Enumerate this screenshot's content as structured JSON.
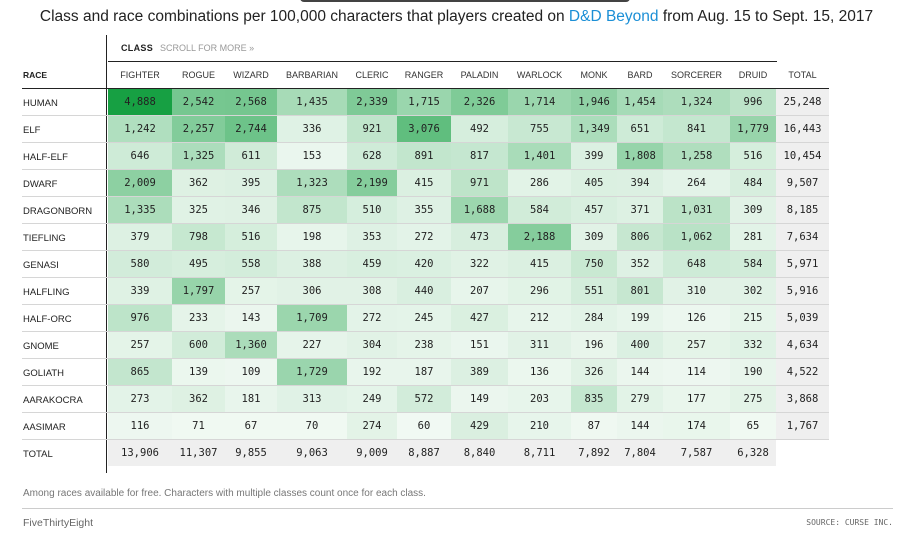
{
  "subtitle": {
    "before": "Class and race combinations per 100,000 characters that players created on ",
    "link": "D&D Beyond",
    "after": " from Aug. 15 to Sept. 15, 2017"
  },
  "chart_data": {
    "type": "heatmap",
    "class_label": "CLASS",
    "scroll_hint": "SCROLL FOR MORE »",
    "race_label": "RACE",
    "columns": [
      "FIGHTER",
      "ROGUE",
      "WIZARD",
      "BARBARIAN",
      "CLERIC",
      "RANGER",
      "PALADIN",
      "WARLOCK",
      "MONK",
      "BARD",
      "SORCERER",
      "DRUID"
    ],
    "total_label": "TOTAL",
    "rows": [
      {
        "race": "HUMAN",
        "values": [
          "4,888",
          "2,542",
          "2,568",
          "1,435",
          "2,339",
          "1,715",
          "2,326",
          "1,714",
          "1,946",
          "1,454",
          "1,324",
          "996"
        ],
        "total": "25,248"
      },
      {
        "race": "ELF",
        "values": [
          "1,242",
          "2,257",
          "2,744",
          "336",
          "921",
          "3,076",
          "492",
          "755",
          "1,349",
          "651",
          "841",
          "1,779"
        ],
        "total": "16,443"
      },
      {
        "race": "HALF-ELF",
        "values": [
          "646",
          "1,325",
          "611",
          "153",
          "628",
          "891",
          "817",
          "1,401",
          "399",
          "1,808",
          "1,258",
          "516"
        ],
        "total": "10,454"
      },
      {
        "race": "DWARF",
        "values": [
          "2,009",
          "362",
          "395",
          "1,323",
          "2,199",
          "415",
          "971",
          "286",
          "405",
          "394",
          "264",
          "484"
        ],
        "total": "9,507"
      },
      {
        "race": "DRAGONBORN",
        "values": [
          "1,335",
          "325",
          "346",
          "875",
          "510",
          "355",
          "1,688",
          "584",
          "457",
          "371",
          "1,031",
          "309"
        ],
        "total": "8,185"
      },
      {
        "race": "TIEFLING",
        "values": [
          "379",
          "798",
          "516",
          "198",
          "353",
          "272",
          "473",
          "2,188",
          "309",
          "806",
          "1,062",
          "281"
        ],
        "total": "7,634"
      },
      {
        "race": "GENASI",
        "values": [
          "580",
          "495",
          "558",
          "388",
          "459",
          "420",
          "322",
          "415",
          "750",
          "352",
          "648",
          "584"
        ],
        "total": "5,971"
      },
      {
        "race": "HALFLING",
        "values": [
          "339",
          "1,797",
          "257",
          "306",
          "308",
          "440",
          "207",
          "296",
          "551",
          "801",
          "310",
          "302"
        ],
        "total": "5,916"
      },
      {
        "race": "HALF-ORC",
        "values": [
          "976",
          "233",
          "143",
          "1,709",
          "272",
          "245",
          "427",
          "212",
          "284",
          "199",
          "126",
          "215"
        ],
        "total": "5,039"
      },
      {
        "race": "GNOME",
        "values": [
          "257",
          "600",
          "1,360",
          "227",
          "304",
          "238",
          "151",
          "311",
          "196",
          "400",
          "257",
          "332"
        ],
        "total": "4,634"
      },
      {
        "race": "GOLIATH",
        "values": [
          "865",
          "139",
          "109",
          "1,729",
          "192",
          "187",
          "389",
          "136",
          "326",
          "144",
          "114",
          "190"
        ],
        "total": "4,522"
      },
      {
        "race": "AARAKOCRA",
        "values": [
          "273",
          "362",
          "181",
          "313",
          "249",
          "572",
          "149",
          "203",
          "835",
          "279",
          "177",
          "275"
        ],
        "total": "3,868"
      },
      {
        "race": "AASIMAR",
        "values": [
          "116",
          "71",
          "67",
          "70",
          "274",
          "60",
          "429",
          "210",
          "87",
          "144",
          "174",
          "65"
        ],
        "total": "1,767"
      }
    ],
    "column_totals": {
      "label": "TOTAL",
      "values": [
        "13,906",
        "11,307",
        "9,855",
        "9,063",
        "9,009",
        "8,887",
        "8,840",
        "8,711",
        "7,892",
        "7,804",
        "7,587",
        "6,328"
      ]
    },
    "color_low": "#f6fbf7",
    "color_high": "#17a043"
  },
  "footer": {
    "note": "Among races available for free. Characters with multiple classes count once for each class.",
    "brand": "FiveThirtyEight",
    "source": "SOURCE: CURSE INC."
  }
}
